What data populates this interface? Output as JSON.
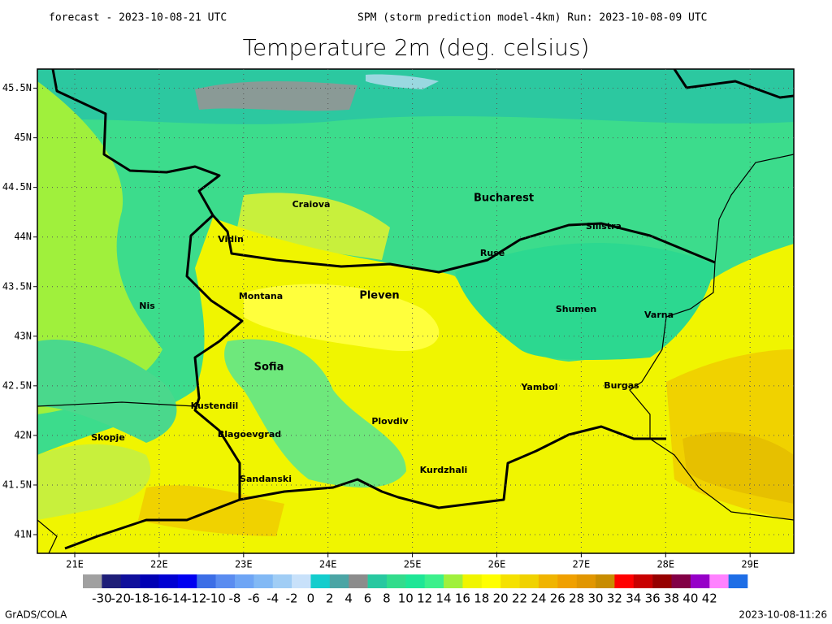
{
  "header": {
    "forecast": "forecast - 2023-10-08-21 UTC",
    "run": "SPM (storm prediction model-4km) Run: 2023-10-08-09 UTC",
    "title": "Temperature 2m (deg. celsius)"
  },
  "map": {
    "lon_ticks": [
      {
        "value": 21,
        "label": "21E"
      },
      {
        "value": 22,
        "label": "22E"
      },
      {
        "value": 23,
        "label": "23E"
      },
      {
        "value": 24,
        "label": "24E"
      },
      {
        "value": 25,
        "label": "25E"
      },
      {
        "value": 26,
        "label": "26E"
      },
      {
        "value": 27,
        "label": "27E"
      },
      {
        "value": 28,
        "label": "28E"
      },
      {
        "value": 29,
        "label": "29E"
      }
    ],
    "lat_ticks": [
      {
        "value": 45.5,
        "label": "45.5N"
      },
      {
        "value": 45,
        "label": "45N"
      },
      {
        "value": 44.5,
        "label": "44.5N"
      },
      {
        "value": 44,
        "label": "44N"
      },
      {
        "value": 43.5,
        "label": "43.5N"
      },
      {
        "value": 43,
        "label": "43N"
      },
      {
        "value": 42.5,
        "label": "42.5N"
      },
      {
        "value": 42,
        "label": "42N"
      },
      {
        "value": 41.5,
        "label": "41.5N"
      },
      {
        "value": 41,
        "label": "41N"
      }
    ],
    "cities": [
      "Craiova",
      "Bucharest",
      "Silistra",
      "Vidin",
      "Ruse",
      "Montana",
      "Pleven",
      "Nis",
      "Shumen",
      "Varna",
      "Sofia",
      "Yambol",
      "Burgas",
      "Kustendil",
      "Plovdiv",
      "Skopje",
      "Blagoevgrad",
      "Kurdzhali",
      "Sandanski"
    ]
  },
  "colorbar": {
    "labels": [
      -30,
      -20,
      -18,
      -16,
      -14,
      -12,
      -10,
      -8,
      -6,
      -4,
      -2,
      0,
      2,
      4,
      6,
      8,
      10,
      12,
      14,
      16,
      18,
      20,
      22,
      24,
      26,
      28,
      30,
      32,
      34,
      36,
      38,
      40,
      42
    ],
    "colors": [
      "#a0a0a0",
      "#1e1e78",
      "#0f0f9b",
      "#0000b4",
      "#0000d2",
      "#0000f0",
      "#3c6ee6",
      "#5a8cf0",
      "#6ea5f5",
      "#82b9f5",
      "#a0cdf5",
      "#c8e1fa",
      "#14cdcd",
      "#4ba5a5",
      "#8c8c8c",
      "#28c8a0",
      "#32dc8c",
      "#1ee696",
      "#3cf08c",
      "#a0f03c",
      "#f0f500",
      "#ffff00",
      "#f5e100",
      "#f0d200",
      "#f0b400",
      "#f0a000",
      "#e19600",
      "#c88c00",
      "#ff0000",
      "#c80000",
      "#960000",
      "#820046",
      "#9600c8",
      "#ff82ff",
      "#1e6ee6"
    ]
  },
  "footer": {
    "left": "GrADS/COLA",
    "right": "2023-10-08-11:26"
  }
}
